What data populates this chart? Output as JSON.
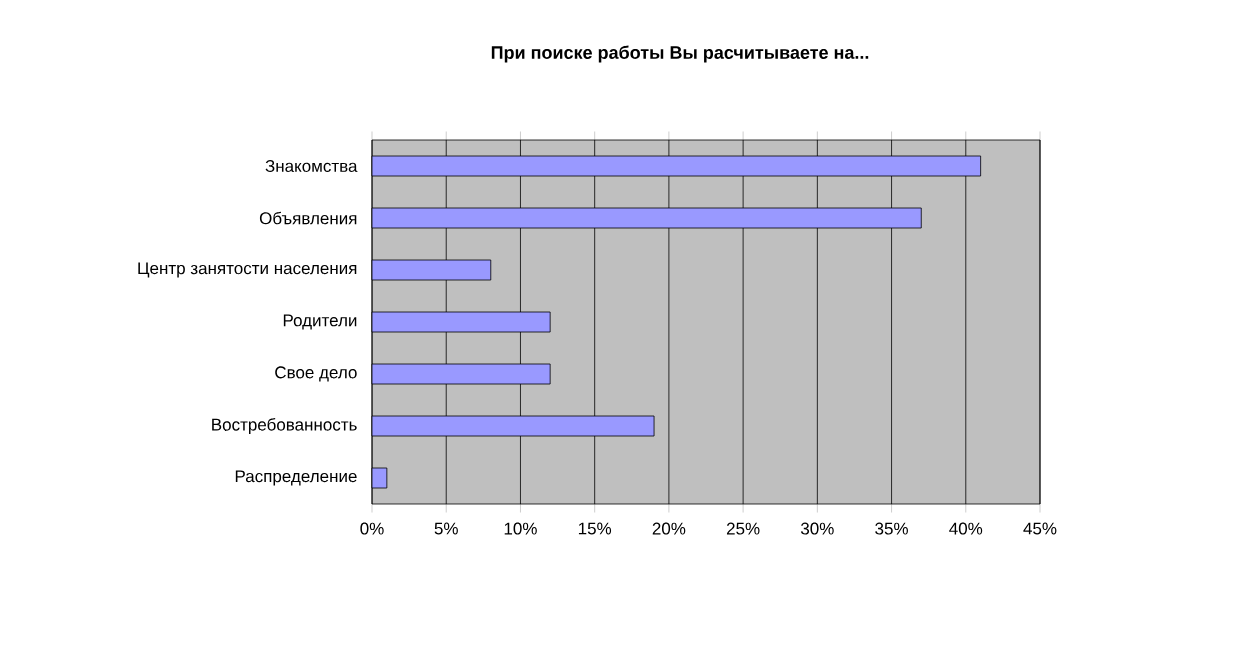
{
  "chart_data": {
    "type": "bar",
    "orientation": "horizontal",
    "title": "При поиске работы Вы расчитываете на...",
    "categories": [
      "Знакомства",
      "Объявления",
      "Центр занятости населения",
      "Родители",
      "Свое дело",
      "Востребованность",
      "Распределение"
    ],
    "values": [
      41,
      37,
      8,
      12,
      12,
      19,
      1
    ],
    "color": "#9999ff",
    "xlim": [
      0,
      45
    ],
    "xticks": [
      {
        "value": 0,
        "label": "0%"
      },
      {
        "value": 5,
        "label": "5%"
      },
      {
        "value": 10,
        "label": "10%"
      },
      {
        "value": 15,
        "label": "15%"
      },
      {
        "value": 20,
        "label": "20%"
      },
      {
        "value": 25,
        "label": "25%"
      },
      {
        "value": 30,
        "label": "30%"
      },
      {
        "value": 35,
        "label": "35%"
      },
      {
        "value": 40,
        "label": "40%"
      },
      {
        "value": 45,
        "label": "45%"
      }
    ],
    "grid": "x"
  }
}
